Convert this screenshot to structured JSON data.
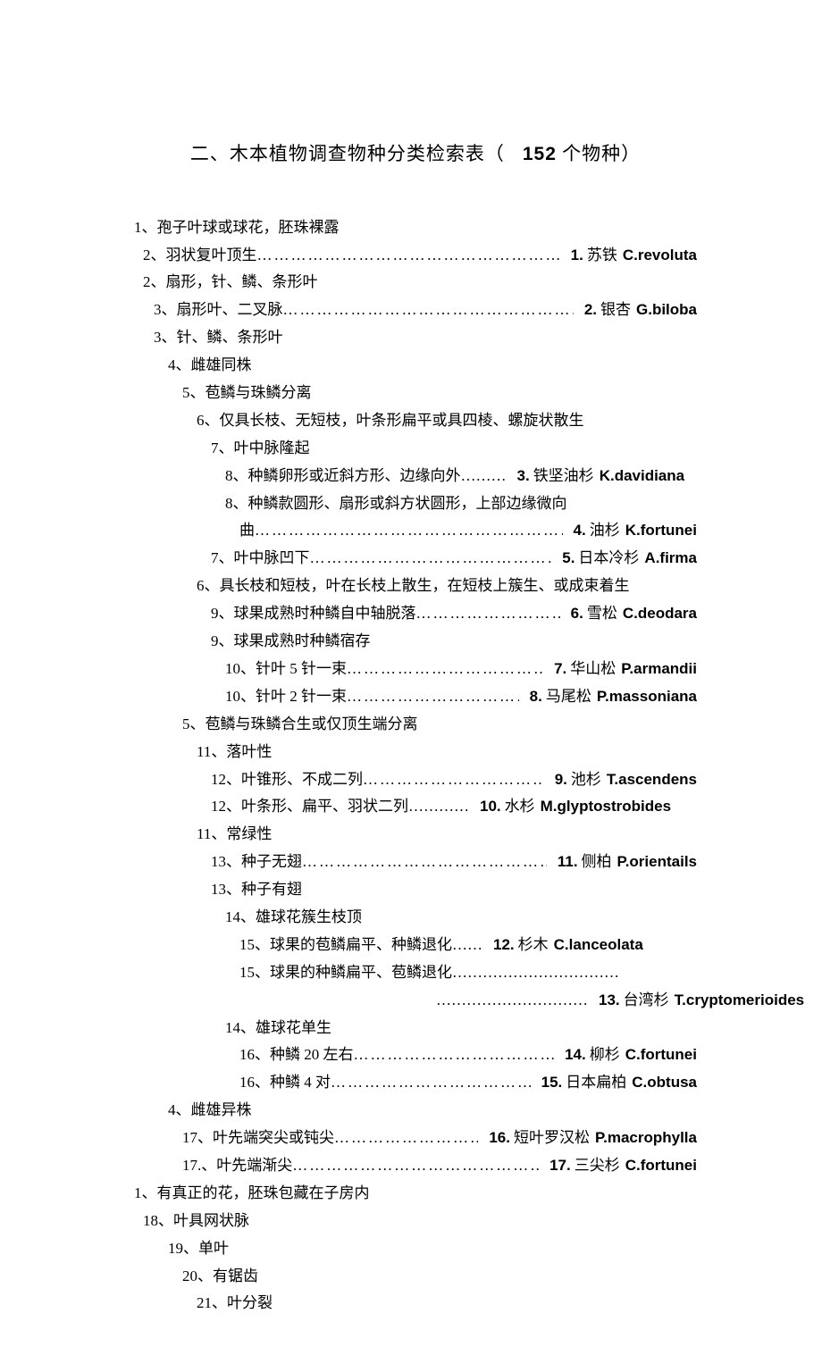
{
  "doc": {
    "background_color": "#ffffff",
    "text_color": "#000000",
    "title_prefix": "二、木本植物调查物种分类检索表（",
    "title_count": "152",
    "title_suffix": " 个物种）"
  },
  "lines": [
    {
      "indent": 0,
      "desc": "1、孢子叶球或球花，胚珠裸露"
    },
    {
      "indent": 1,
      "desc": "2、羽状复叶顶生",
      "dots": true,
      "num": "1.",
      "cn": "苏铁",
      "lat": "C.revoluta"
    },
    {
      "indent": 1,
      "desc": "2、扇形，针、鳞、条形叶"
    },
    {
      "indent": 2,
      "desc": "3、扇形叶、二叉脉",
      "dots": true,
      "num": "2.",
      "cn": "银杏",
      "lat": "G.biloba"
    },
    {
      "indent": 2,
      "desc": "3、针、鳞、条形叶"
    },
    {
      "indent": 3,
      "desc": "4、雌雄同株"
    },
    {
      "indent": 4,
      "desc": "5、苞鳞与珠鳞分离"
    },
    {
      "indent": 5,
      "desc": "6、仅具长枝、无短枝，叶条形扁平或具四棱、螺旋状散生"
    },
    {
      "indent": 6,
      "desc": "7、叶中脉隆起"
    },
    {
      "indent": 7,
      "desc": "8、种鳞卵形或近斜方形、边缘向外",
      "dots_inline": "………",
      "num": "3.",
      "cn": "铁坚油杉",
      "lat": "K.davidiana"
    },
    {
      "indent": 7,
      "desc": "8、种鳞款圆形、扇形或斜方状圆形，上部边缘微向"
    },
    {
      "indent": 8,
      "desc": "曲",
      "dots": true,
      "num": "4.",
      "cn": "油杉",
      "lat": "K.fortunei"
    },
    {
      "indent": 6,
      "desc": "7、叶中脉凹下",
      "dots": true,
      "num": "5.",
      "cn": "日本冷杉",
      "lat": "A.firma"
    },
    {
      "indent": 5,
      "desc": "6、具长枝和短枝，叶在长枝上散生，在短枝上簇生、或成束着生"
    },
    {
      "indent": 6,
      "desc": "9、球果成熟时种鳞自中轴脱落",
      "dots": true,
      "num": "6.",
      "cn": "雪松",
      "lat": "C.deodara"
    },
    {
      "indent": 6,
      "desc": "9、球果成熟时种鳞宿存"
    },
    {
      "indent": 7,
      "desc": "10、针叶 5 针一束",
      "dots": true,
      "num": "7.",
      "cn": "华山松",
      "lat": "P.armandii"
    },
    {
      "indent": 7,
      "desc": "10、针叶 2 针一束",
      "dots": true,
      "num": "8.",
      "cn": "马尾松",
      "lat": "P.massoniana"
    },
    {
      "indent": 4,
      "desc": "5、苞鳞与珠鳞合生或仅顶生端分离"
    },
    {
      "indent": 5,
      "desc": "11、落叶性"
    },
    {
      "indent": 6,
      "desc": "12、叶锥形、不成二列",
      "dots": true,
      "num": "9.",
      "cn": "池杉",
      "lat": "T.ascendens"
    },
    {
      "indent": 6,
      "desc": "12、叶条形、扁平、羽状二列",
      "dots_inline": "…………",
      "num": "10.",
      "cn": "水杉",
      "lat": "M.glyptostrobides"
    },
    {
      "indent": 5,
      "desc": "11、常绿性"
    },
    {
      "indent": 6,
      "desc": "13、种子无翅",
      "dots": true,
      "num": "11.",
      "cn": "侧柏",
      "lat": "P.orientails"
    },
    {
      "indent": 6,
      "desc": "13、种子有翅"
    },
    {
      "indent": 7,
      "desc": "14、雄球花簇生枝顶"
    },
    {
      "indent": 8,
      "desc": "15、球果的苞鳞扁平、种鳞退化",
      "dots_inline": "……",
      "num": "12.",
      "cn": "杉木",
      "lat": "C.lanceolata"
    },
    {
      "indent": 8,
      "desc": "15、球果的种鳞扁平、苞鳞退化",
      "dots_trail": "……………………………"
    },
    {
      "indent": 8,
      "cont": true,
      "dots_lead": "…………………………",
      "num": "13.",
      "cn": "台湾杉",
      "lat": "T.cryptomerioides"
    },
    {
      "indent": 7,
      "desc": "14、雄球花单生"
    },
    {
      "indent": 8,
      "desc": "16、种鳞 20 左右",
      "dots": true,
      "num": "14.",
      "cn": "柳杉",
      "lat": "C.fortunei"
    },
    {
      "indent": 8,
      "desc": "16、种鳞 4 对",
      "dots": true,
      "num": "15.",
      "cn": "日本扁柏",
      "lat": "C.obtusa"
    },
    {
      "indent": 3,
      "desc": "4、雌雄异株"
    },
    {
      "indent": 4,
      "desc": "17、叶先端突尖或钝尖",
      "dots": true,
      "num": "16.",
      "cn": "短叶罗汉松",
      "lat": "P.macrophylla"
    },
    {
      "indent": 4,
      "desc": "17.、叶先端渐尖",
      "dots": true,
      "num": "17.",
      "cn": "三尖杉",
      "lat": "C.fortunei"
    },
    {
      "indent": 0,
      "desc": "1、有真正的花，胚珠包藏在子房内"
    },
    {
      "indent": 1,
      "desc": "18、叶具网状脉"
    },
    {
      "indent": 3,
      "desc": "19、单叶"
    },
    {
      "indent": 4,
      "desc": "20、有锯齿"
    },
    {
      "indent": 5,
      "desc": "21、叶分裂"
    }
  ]
}
